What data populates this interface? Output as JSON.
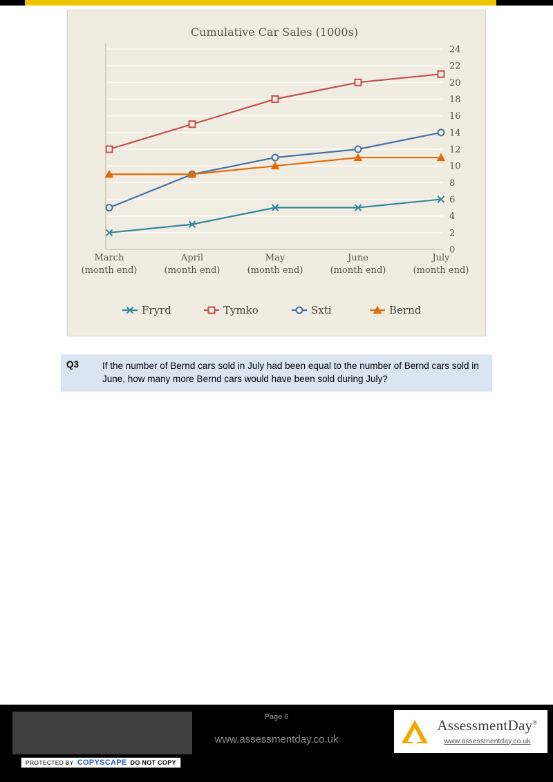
{
  "page": {
    "top_bar_color": "#eec400"
  },
  "chart_data": {
    "type": "line",
    "title": "Cumulative Car Sales (1000s)",
    "categories": [
      "March (month end)",
      "April (month end)",
      "May (month end)",
      "June (month end)",
      "July (month end)"
    ],
    "category_line1": [
      "March",
      "April",
      "May",
      "June",
      "July"
    ],
    "category_line2": "(month end)",
    "ylim": [
      0,
      24
    ],
    "ytick_step": 2,
    "yaxis_side": "right",
    "grid": true,
    "legend_position": "bottom",
    "panel_bg": "#f1ece2",
    "series": [
      {
        "name": "Fryrd",
        "color": "#31859b",
        "marker": "x",
        "values": [
          2,
          3,
          5,
          5,
          6
        ]
      },
      {
        "name": "Tymko",
        "color": "#c0504d",
        "marker": "square",
        "values": [
          12,
          15,
          18,
          20,
          21
        ]
      },
      {
        "name": "Sxti",
        "color": "#4472a4",
        "marker": "circle",
        "values": [
          5,
          9,
          11,
          12,
          14
        ]
      },
      {
        "name": "Bernd",
        "color": "#e36c0a",
        "marker": "triangle",
        "values": [
          9,
          9,
          10,
          11,
          11
        ]
      }
    ]
  },
  "question": {
    "number": "Q3",
    "text": "If the number of Bernd cars sold in July had been equal to the number of Bernd cars sold in June, how many more Bernd cars would have been sold during July?",
    "panel_color": "#dbe5f1"
  },
  "footer": {
    "page_label": "Page 6",
    "center_site": "www.assessmentday.co.uk",
    "brand_name": "AssessmentDay",
    "brand_registered": "®",
    "brand_url": "www.assessmentday.co.uk",
    "copyscape_prefix": "PROTECTED BY",
    "copyscape_brand": "COPYSCAPE",
    "copyscape_suffix": "DO NOT COPY"
  }
}
